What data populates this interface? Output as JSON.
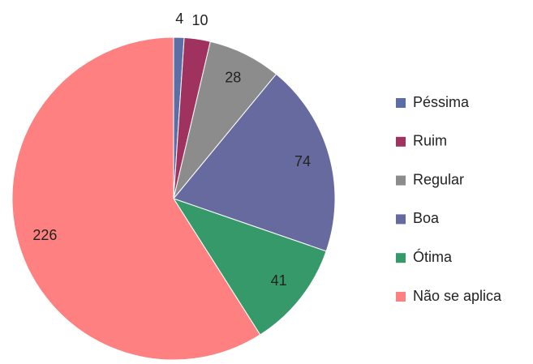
{
  "chart_data": {
    "type": "pie",
    "categories": [
      "Péssima",
      "Ruim",
      "Regular",
      "Boa",
      "Ótima",
      "Não se aplica"
    ],
    "values": [
      4,
      10,
      28,
      74,
      41,
      226
    ],
    "colors": [
      "#5b6ea6",
      "#a0325f",
      "#8c8c8c",
      "#676a9e",
      "#35996a",
      "#ff8080"
    ],
    "legend": "right"
  }
}
